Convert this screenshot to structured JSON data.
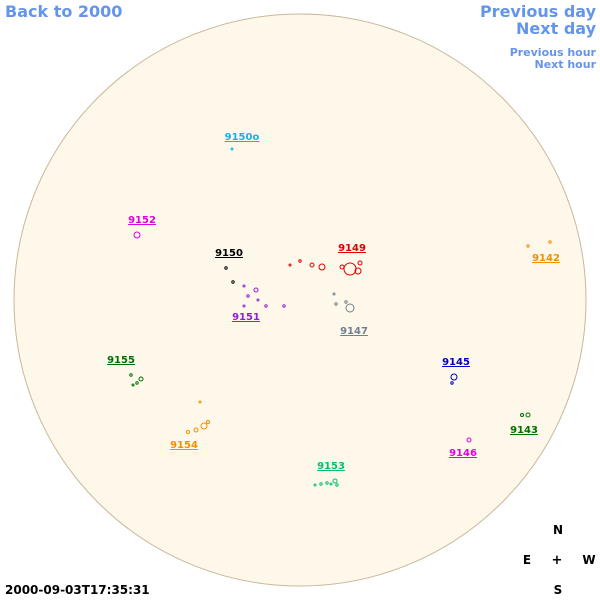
{
  "nav": {
    "back": "Back to 2000",
    "previous_day": "Previous day",
    "next_day": "Next day",
    "previous_hour": "Previous hour",
    "next_hour": "Next hour"
  },
  "regions": [
    {
      "label": "9150o",
      "color": "#1ab0e0"
    },
    {
      "label": "9152",
      "color": "#e000e0"
    },
    {
      "label": "9150",
      "color": "#000000"
    },
    {
      "label": "9149",
      "color": "#e00000"
    },
    {
      "label": "9142",
      "color": "#f09000"
    },
    {
      "label": "9151",
      "color": "#9020d0"
    },
    {
      "label": "9147",
      "color": "#708090"
    },
    {
      "label": "9155",
      "color": "#007000"
    },
    {
      "label": "9145",
      "color": "#0000c0"
    },
    {
      "label": "9143",
      "color": "#007000"
    },
    {
      "label": "9154",
      "color": "#f09000"
    },
    {
      "label": "9146",
      "color": "#e000e0"
    },
    {
      "label": "9153",
      "color": "#00c070"
    }
  ],
  "compass": {
    "north": "N",
    "east": "E",
    "center": "+",
    "west": "W",
    "south": "S"
  },
  "timestamp": "2000-09-03T17:35:31"
}
